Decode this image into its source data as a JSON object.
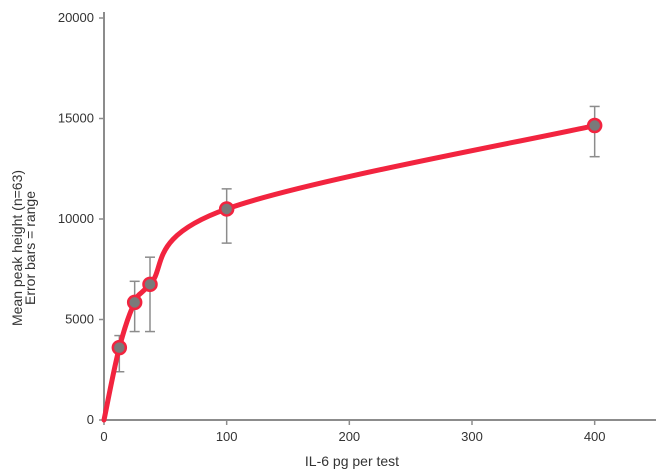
{
  "chart_data": {
    "type": "line",
    "title": "",
    "xlabel": "IL-6 pg per test",
    "ylabel_lines": [
      "Mean peak height (n=63)",
      "Error bars = range"
    ],
    "xlim": [
      0,
      450
    ],
    "ylim": [
      0,
      20000
    ],
    "x_ticks": [
      0,
      100,
      200,
      300,
      400
    ],
    "y_ticks": [
      0,
      5000,
      10000,
      15000,
      20000
    ],
    "grid": false,
    "series": [
      {
        "points": [
          {
            "x": 0,
            "y": 0,
            "err_low": null,
            "err_high": null,
            "marker": false
          },
          {
            "x": 12.5,
            "y": 3600,
            "err_low": 2400,
            "err_high": 4200,
            "marker": true
          },
          {
            "x": 25,
            "y": 5850,
            "err_low": 4400,
            "err_high": 6900,
            "marker": true
          },
          {
            "x": 37.5,
            "y": 6750,
            "err_low": 4400,
            "err_high": 8100,
            "marker": true
          },
          {
            "x": 100,
            "y": 10500,
            "err_low": 8800,
            "err_high": 11500,
            "marker": true
          },
          {
            "x": 400,
            "y": 14650,
            "err_low": 13100,
            "err_high": 15600,
            "marker": true
          }
        ]
      }
    ],
    "colors": {
      "line": "#f2243f",
      "marker_fill": "#7a7a7a",
      "marker_stroke": "#f2243f",
      "error_bar": "#8c8c8c",
      "axis": "#8c8c8c",
      "text": "#333333"
    }
  }
}
